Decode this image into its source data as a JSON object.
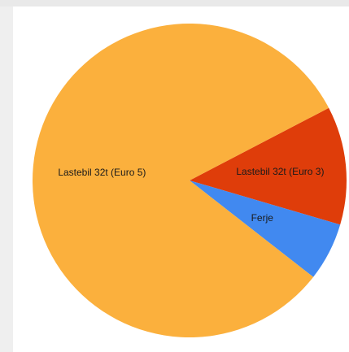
{
  "chart_data": {
    "type": "pie",
    "title": "",
    "slices": [
      {
        "label": "Lastebil 32t (Euro 3)",
        "value": 12.2,
        "color": "#df3d0a"
      },
      {
        "label": "Ferje",
        "value": 6.0,
        "color": "#4189f0"
      },
      {
        "label": "Lastebil 32t (Euro 5)",
        "value": 81.8,
        "color": "#fbb03d"
      }
    ],
    "legend": "none",
    "labels_inside": true
  }
}
